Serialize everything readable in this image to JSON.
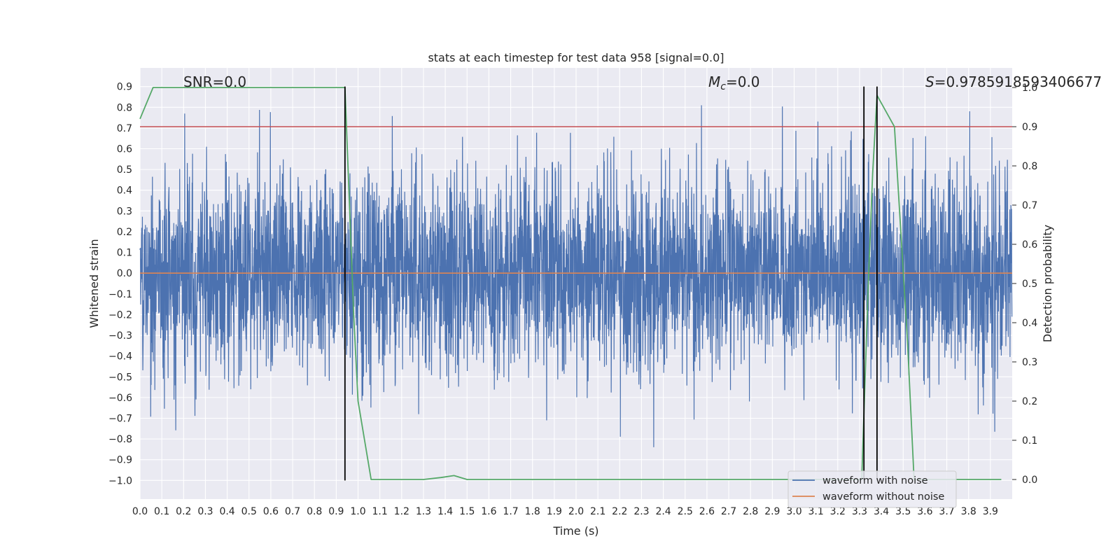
{
  "chart_data": {
    "type": "line",
    "title": "stats at each timestep for test data 958 [signal=0.0]",
    "xlabel": "Time (s)",
    "ylabel": "Whitened strain",
    "y2label": "Detection probability",
    "xlim": [
      0.0,
      4.0
    ],
    "ylim": [
      -1.09,
      0.99
    ],
    "y2lim": [
      -0.05,
      1.05
    ],
    "grid": true,
    "x_ticks": [
      "0.0",
      "0.1",
      "0.2",
      "0.3",
      "0.4",
      "0.5",
      "0.6",
      "0.7",
      "0.8",
      "0.9",
      "1.0",
      "1.1",
      "1.2",
      "1.3",
      "1.4",
      "1.5",
      "1.6",
      "1.7",
      "1.8",
      "1.9",
      "2.0",
      "2.1",
      "2.2",
      "2.3",
      "2.4",
      "2.5",
      "2.6",
      "2.7",
      "2.8",
      "2.9",
      "3.0",
      "3.1",
      "3.2",
      "3.3",
      "3.4",
      "3.5",
      "3.6",
      "3.7",
      "3.8",
      "3.9"
    ],
    "y_ticks": [
      "0.9",
      "0.8",
      "0.7",
      "0.6",
      "0.5",
      "0.4",
      "0.3",
      "0.2",
      "0.1",
      "0.0",
      "−0.1",
      "−0.2",
      "−0.3",
      "−0.4",
      "−0.5",
      "−0.6",
      "−0.7",
      "−0.8",
      "−0.9",
      "−1.0"
    ],
    "y2_ticks": [
      "1.0",
      "0.9",
      "0.8",
      "0.7",
      "0.6",
      "0.5",
      "0.4",
      "0.3",
      "0.2",
      "0.1",
      "0.0"
    ],
    "annotations": {
      "snr": "SNR=0.0",
      "mc_symbol": "M",
      "mc_sub": "c",
      "mc_value": "=0.0",
      "s_symbol": "S",
      "s_value": "=0.9785918593406677"
    },
    "legend": {
      "placement": "lower-right",
      "entries": [
        "waveform with noise",
        "waveform without noise"
      ]
    },
    "series": [
      {
        "name": "waveform with noise",
        "color": "#4c72b0",
        "kind": "noise",
        "samples": 4000,
        "std": 0.24,
        "clip": [
          -1.0,
          0.9
        ]
      },
      {
        "name": "waveform without noise",
        "color": "#dd8452",
        "x": [
          0.0,
          4.0
        ],
        "values": [
          0.0,
          0.0
        ]
      },
      {
        "color": "#55a868",
        "axis": "y2",
        "x": [
          0.0,
          0.06,
          0.12,
          0.9,
          0.94,
          0.98,
          1.0,
          1.06,
          1.3,
          1.38,
          1.44,
          1.5,
          3.3,
          3.31,
          3.34,
          3.36,
          3.38,
          3.46,
          3.52,
          3.55,
          3.95
        ],
        "values": [
          0.92,
          1.0,
          1.0,
          1.0,
          1.0,
          0.42,
          0.2,
          0.0,
          0.0,
          0.005,
          0.01,
          0.0,
          0.0,
          0.0,
          0.5,
          0.78,
          0.98,
          0.9,
          0.35,
          0.0,
          0.0
        ]
      }
    ],
    "threshold": {
      "color": "#c44e52",
      "axis": "y2",
      "value": 0.9
    },
    "vlines": {
      "color": "#000000",
      "x": [
        0.94,
        3.32,
        3.38
      ],
      "y_range": [
        -1.0,
        0.9
      ]
    }
  }
}
